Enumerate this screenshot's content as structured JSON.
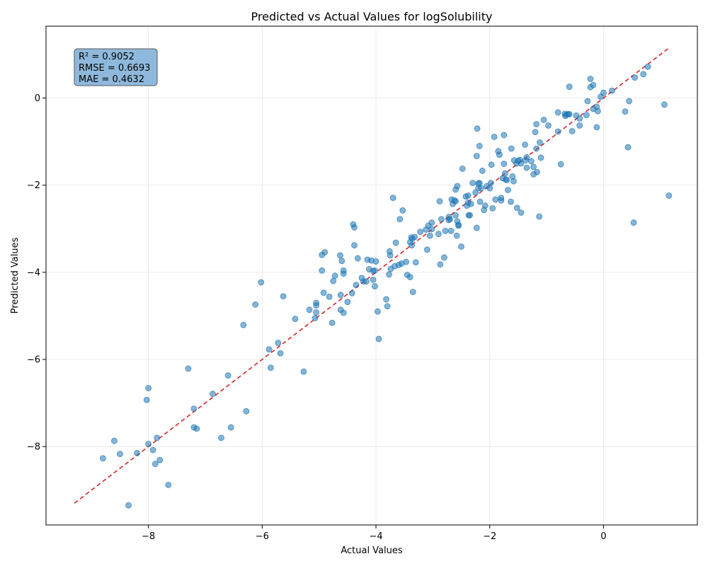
{
  "chart_data": {
    "type": "scatter",
    "title": "Predicted vs Actual Values for logSolubility",
    "xlabel": "Actual Values",
    "ylabel": "Predicted Values",
    "xlim": [
      -9.8,
      1.65
    ],
    "ylim": [
      -9.8,
      1.65
    ],
    "xticks": [
      -8,
      -6,
      -4,
      -2,
      0
    ],
    "yticks": [
      -8,
      -6,
      -4,
      -2,
      0
    ],
    "x_tick_labels": [
      "−8",
      "−6",
      "−4",
      "−2",
      "0"
    ],
    "y_tick_labels": [
      "−8",
      "−6",
      "−4",
      "−2",
      "0"
    ],
    "grid": true,
    "point_color": "#1f77b4",
    "reference_line": {
      "from": [
        -9.3,
        -9.3
      ],
      "to": [
        1.15,
        1.15
      ],
      "color": "#d62728",
      "style": "dashed"
    },
    "stats": [
      "R² = 0.9052",
      "RMSE = 0.6693",
      "MAE = 0.4632"
    ],
    "stats_box_color": "#8fb9dc",
    "stats_position": "top-left",
    "points": [
      [
        -8.35,
        -9.35
      ],
      [
        -8.8,
        -8.27
      ],
      [
        -8.6,
        -7.87
      ],
      [
        -8.5,
        -8.17
      ],
      [
        -8.2,
        -8.15
      ],
      [
        -8.03,
        -6.93
      ],
      [
        -8.0,
        -6.66
      ],
      [
        -8.0,
        -7.94
      ],
      [
        -7.92,
        -8.08
      ],
      [
        -7.88,
        -8.4
      ],
      [
        -7.85,
        -7.8
      ],
      [
        -7.8,
        -8.31
      ],
      [
        -7.65,
        -8.88
      ],
      [
        -7.3,
        -6.21
      ],
      [
        -7.2,
        -7.56
      ],
      [
        -7.2,
        -7.13
      ],
      [
        -7.15,
        -7.59
      ],
      [
        -6.87,
        -6.79
      ],
      [
        -6.72,
        -7.8
      ],
      [
        -6.6,
        -6.37
      ],
      [
        -6.55,
        -7.56
      ],
      [
        -6.28,
        -7.19
      ],
      [
        -6.33,
        -5.21
      ],
      [
        -6.12,
        -4.74
      ],
      [
        -6.02,
        -4.23
      ],
      [
        -5.85,
        -6.19
      ],
      [
        -5.88,
        -5.77
      ],
      [
        -5.72,
        -5.62
      ],
      [
        -5.68,
        -5.86
      ],
      [
        -5.63,
        -4.55
      ],
      [
        -5.42,
        -5.07
      ],
      [
        -5.27,
        -6.28
      ],
      [
        -5.17,
        -4.86
      ],
      [
        -5.07,
        -5.05
      ],
      [
        -5.05,
        -4.92
      ],
      [
        -5.05,
        -4.76
      ],
      [
        -5.05,
        -4.7
      ],
      [
        -4.92,
        -4.47
      ],
      [
        -4.95,
        -3.96
      ],
      [
        -4.95,
        -3.6
      ],
      [
        -4.9,
        -3.54
      ],
      [
        -4.82,
        -4.56
      ],
      [
        -4.77,
        -5.16
      ],
      [
        -4.75,
        -4.2
      ],
      [
        -4.72,
        -4.08
      ],
      [
        -4.63,
        -3.61
      ],
      [
        -4.62,
        -4.52
      ],
      [
        -4.62,
        -4.86
      ],
      [
        -4.6,
        -3.74
      ],
      [
        -4.57,
        -4.93
      ],
      [
        -4.57,
        -4.03
      ],
      [
        -4.57,
        -3.96
      ],
      [
        -4.5,
        -4.68
      ],
      [
        -4.42,
        -4.48
      ],
      [
        -4.4,
        -2.9
      ],
      [
        -4.38,
        -2.97
      ],
      [
        -4.38,
        -3.38
      ],
      [
        -4.35,
        -4.29
      ],
      [
        -4.32,
        -3.68
      ],
      [
        -4.25,
        -4.13
      ],
      [
        -4.22,
        -4.21
      ],
      [
        -4.17,
        -4.21
      ],
      [
        -4.15,
        -3.71
      ],
      [
        -4.12,
        -3.93
      ],
      [
        -4.08,
        -3.73
      ],
      [
        -4.05,
        -4.17
      ],
      [
        -4.05,
        -3.97
      ],
      [
        -4.02,
        -4.32
      ],
      [
        -4.02,
        -3.96
      ],
      [
        -4.0,
        -3.75
      ],
      [
        -3.97,
        -4.9
      ],
      [
        -3.95,
        -5.53
      ],
      [
        -3.82,
        -4.62
      ],
      [
        -3.8,
        -4.78
      ],
      [
        -3.77,
        -4.05
      ],
      [
        -3.76,
        -3.52
      ],
      [
        -3.75,
        -3.61
      ],
      [
        -3.74,
        -3.92
      ],
      [
        -3.7,
        -2.29
      ],
      [
        -3.67,
        -3.86
      ],
      [
        -3.65,
        -3.32
      ],
      [
        -3.6,
        -3.83
      ],
      [
        -3.58,
        -2.78
      ],
      [
        -3.55,
        -3.8
      ],
      [
        -3.53,
        -2.58
      ],
      [
        -3.47,
        -3.76
      ],
      [
        -3.45,
        -4.06
      ],
      [
        -3.4,
        -4.11
      ],
      [
        -3.4,
        -3.31
      ],
      [
        -3.38,
        -3.2
      ],
      [
        -3.37,
        -3.38
      ],
      [
        -3.36,
        -3.23
      ],
      [
        -3.35,
        -4.45
      ],
      [
        -3.32,
        -3.19
      ],
      [
        -3.3,
        -3.77
      ],
      [
        -3.22,
        -3.07
      ],
      [
        -3.12,
        -3.02
      ],
      [
        -3.1,
        -3.48
      ],
      [
        -3.08,
        -2.93
      ],
      [
        -3.05,
        -3.16
      ],
      [
        -3.02,
        -3.01
      ],
      [
        -3.02,
        -2.86
      ],
      [
        -2.9,
        -3.12
      ],
      [
        -2.88,
        -2.37
      ],
      [
        -2.87,
        -3.82
      ],
      [
        -2.85,
        -2.78
      ],
      [
        -2.8,
        -3.66
      ],
      [
        -2.78,
        -3.05
      ],
      [
        -2.72,
        -2.73
      ],
      [
        -2.72,
        -2.8
      ],
      [
        -2.7,
        -2.78
      ],
      [
        -2.68,
        -3.05
      ],
      [
        -2.67,
        -2.33
      ],
      [
        -2.65,
        -2.43
      ],
      [
        -2.62,
        -2.35
      ],
      [
        -2.6,
        -2.37
      ],
      [
        -2.6,
        -2.1
      ],
      [
        -2.6,
        -2.69
      ],
      [
        -2.58,
        -3.16
      ],
      [
        -2.57,
        -2.02
      ],
      [
        -2.57,
        -2.83
      ],
      [
        -2.55,
        -2.93
      ],
      [
        -2.55,
        -2.91
      ],
      [
        -2.5,
        -3.41
      ],
      [
        -2.48,
        -1.62
      ],
      [
        -2.42,
        -2.26
      ],
      [
        -2.4,
        -2.47
      ],
      [
        -2.38,
        -2.4
      ],
      [
        -2.38,
        -2.24
      ],
      [
        -2.37,
        -2.69
      ],
      [
        -2.35,
        -2.69
      ],
      [
        -2.33,
        -2.43
      ],
      [
        -2.3,
        -1.95
      ],
      [
        -2.25,
        -2.17
      ],
      [
        -2.23,
        -2.98
      ],
      [
        -2.23,
        -1.33
      ],
      [
        -2.22,
        -0.7
      ],
      [
        -2.2,
        -1.96
      ],
      [
        -2.2,
        -2.07
      ],
      [
        -2.18,
        -1.95
      ],
      [
        -2.18,
        -1.1
      ],
      [
        -2.17,
        -2.38
      ],
      [
        -2.15,
        -2.07
      ],
      [
        -2.13,
        -1.67
      ],
      [
        -2.1,
        -2.57
      ],
      [
        -2.08,
        -2.47
      ],
      [
        -2.05,
        -2.02
      ],
      [
        -2.0,
        -2.07
      ],
      [
        -1.98,
        -1.95
      ],
      [
        -1.97,
        -1.53
      ],
      [
        -1.95,
        -2.53
      ],
      [
        -1.92,
        -0.89
      ],
      [
        -1.9,
        -2.33
      ],
      [
        -1.85,
        -1.22
      ],
      [
        -1.83,
        -1.3
      ],
      [
        -1.8,
        -2.35
      ],
      [
        -1.8,
        -2.29
      ],
      [
        -1.77,
        -1.84
      ],
      [
        -1.75,
        -1.51
      ],
      [
        -1.75,
        -0.85
      ],
      [
        -1.73,
        -1.73
      ],
      [
        -1.72,
        -1.87
      ],
      [
        -1.7,
        -1.88
      ],
      [
        -1.68,
        -2.11
      ],
      [
        -1.63,
        -2.38
      ],
      [
        -1.62,
        -1.16
      ],
      [
        -1.6,
        -1.8
      ],
      [
        -1.58,
        -1.91
      ],
      [
        -1.57,
        -1.43
      ],
      [
        -1.53,
        -1.5
      ],
      [
        -1.52,
        -2.52
      ],
      [
        -1.5,
        -1.44
      ],
      [
        -1.47,
        -1.42
      ],
      [
        -1.45,
        -1.5
      ],
      [
        -1.45,
        -2.63
      ],
      [
        -1.38,
        -1.07
      ],
      [
        -1.37,
        -1.43
      ],
      [
        -1.35,
        -1.6
      ],
      [
        -1.35,
        -1.36
      ],
      [
        -1.27,
        -1.45
      ],
      [
        -1.23,
        -1.75
      ],
      [
        -1.23,
        -1.58
      ],
      [
        -1.2,
        -0.78
      ],
      [
        -1.18,
        -0.6
      ],
      [
        -1.18,
        -1.16
      ],
      [
        -1.17,
        -1.7
      ],
      [
        -1.13,
        -2.72
      ],
      [
        -1.12,
        -1.02
      ],
      [
        -1.1,
        -1.37
      ],
      [
        -1.05,
        -0.5
      ],
      [
        -0.97,
        -0.63
      ],
      [
        -0.8,
        -0.33
      ],
      [
        -0.8,
        -0.77
      ],
      [
        -0.75,
        -1.52
      ],
      [
        -0.68,
        -0.36
      ],
      [
        -0.67,
        -0.41
      ],
      [
        -0.65,
        -0.38
      ],
      [
        -0.62,
        -0.37
      ],
      [
        -0.6,
        -0.37
      ],
      [
        -0.6,
        0.26
      ],
      [
        -0.55,
        -0.76
      ],
      [
        -0.48,
        -0.4
      ],
      [
        -0.42,
        -0.47
      ],
      [
        -0.42,
        -0.63
      ],
      [
        -0.3,
        -0.39
      ],
      [
        -0.28,
        -0.07
      ],
      [
        -0.23,
        0.44
      ],
      [
        -0.23,
        0.25
      ],
      [
        -0.18,
        0.3
      ],
      [
        -0.18,
        -0.25
      ],
      [
        -0.12,
        -0.2
      ],
      [
        -0.12,
        -0.67
      ],
      [
        -0.1,
        -0.3
      ],
      [
        -0.05,
        0.03
      ],
      [
        0.0,
        0.12
      ],
      [
        0.15,
        0.17
      ],
      [
        0.38,
        -0.31
      ],
      [
        0.43,
        -1.13
      ],
      [
        0.45,
        -0.07
      ],
      [
        0.53,
        -2.86
      ],
      [
        0.55,
        0.47
      ],
      [
        0.7,
        0.55
      ],
      [
        0.78,
        0.72
      ],
      [
        1.07,
        -0.15
      ],
      [
        1.15,
        -2.24
      ]
    ]
  }
}
